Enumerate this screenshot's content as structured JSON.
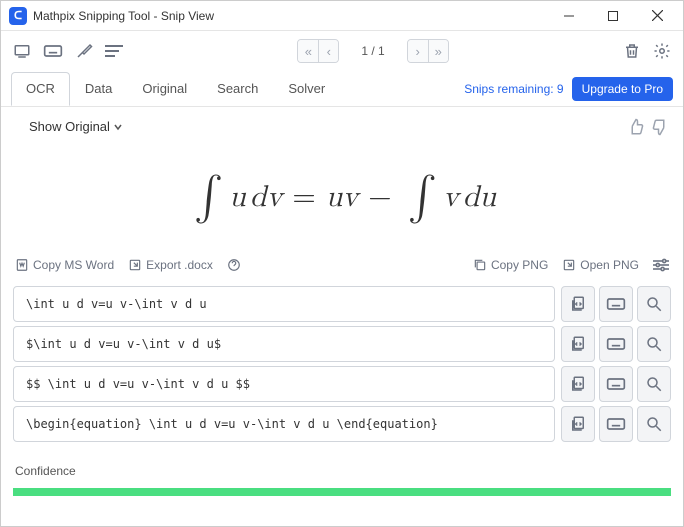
{
  "window": {
    "title": "Mathpix Snipping Tool - Snip View",
    "logo_text": "ᑕ"
  },
  "pager": {
    "current": "1",
    "total": "1"
  },
  "tabs": {
    "items": [
      {
        "label": "OCR",
        "active": true
      },
      {
        "label": "Data",
        "active": false
      },
      {
        "label": "Original",
        "active": false
      },
      {
        "label": "Search",
        "active": false
      },
      {
        "label": "Solver",
        "active": false
      }
    ],
    "snips_label": "Snips remaining: ",
    "snips_count": "9",
    "upgrade_label": "Upgrade to Pro"
  },
  "show_original_label": "Show Original",
  "equation": {
    "rendered_text": "∫ u dv = uv − ∫ v du"
  },
  "actions": {
    "copy_word": "Copy MS Word",
    "export_docx": "Export .docx",
    "copy_png": "Copy PNG",
    "open_png": "Open PNG"
  },
  "latex_rows": [
    "\\int u d v=u v-\\int v d u",
    "$\\int u d v=u v-\\int v d u$",
    "$$  \\int u d v=u v-\\int v d u  $$",
    "\\begin{equation}  \\int u d v=u v-\\int v d u  \\end{equation}"
  ],
  "confidence": {
    "label": "Confidence",
    "value": 1.0,
    "bar_color": "#4ade80"
  },
  "colors": {
    "accent": "#2563eb",
    "icon": "#6b7280",
    "border": "#d1d5db"
  }
}
